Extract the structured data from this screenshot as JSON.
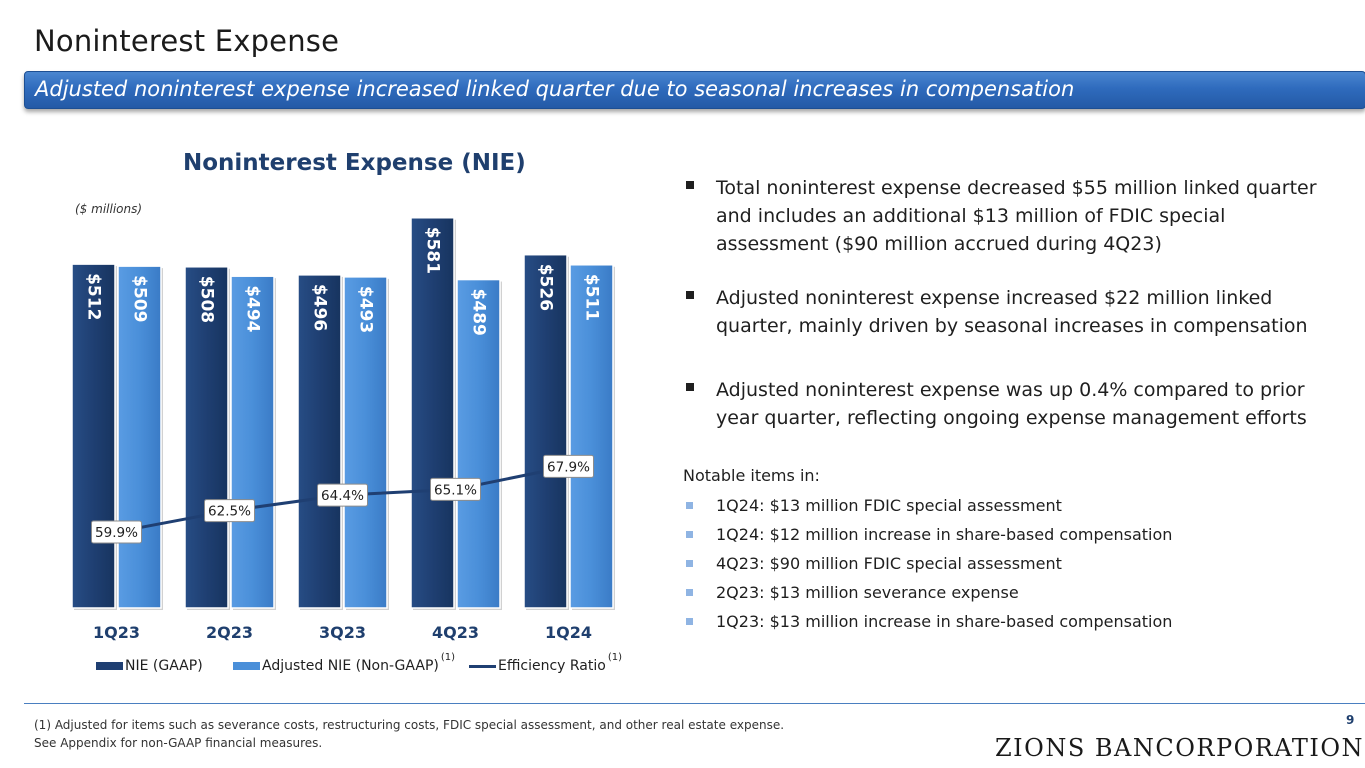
{
  "header": {
    "title": "Noninterest Expense",
    "banner": "Adjusted noninterest expense increased linked quarter due to seasonal increases in compensation"
  },
  "chart_data": {
    "type": "bar",
    "title": "Noninterest Expense (NIE)",
    "units_note": "($ millions)",
    "categories": [
      "1Q23",
      "2Q23",
      "3Q23",
      "4Q23",
      "1Q24"
    ],
    "series": [
      {
        "name": "NIE (GAAP)",
        "values": [
          512,
          508,
          496,
          581,
          526
        ],
        "labels": [
          "$512",
          "$508",
          "$496",
          "$581",
          "$526"
        ],
        "color": "#1f3f72"
      },
      {
        "name": "Adjusted NIE (Non-GAAP)",
        "values": [
          509,
          494,
          493,
          489,
          511
        ],
        "labels": [
          "$509",
          "$494",
          "$493",
          "$489",
          "$511"
        ],
        "color": "#4a8fd9"
      },
      {
        "name": "Efficiency Ratio",
        "type": "line",
        "values": [
          59.9,
          62.5,
          64.4,
          65.1,
          67.9
        ],
        "labels": [
          "59.9%",
          "62.5%",
          "64.4%",
          "65.1%",
          "67.9%"
        ],
        "color": "#1f3f72"
      }
    ],
    "ylim": [
      0,
      600
    ],
    "ratio_ylim": [
      0,
      100
    ],
    "legend": {
      "gaap": "NIE (GAAP)",
      "adjusted": "Adjusted NIE (Non-GAAP)",
      "adjusted_sup": "(1)",
      "ratio": "Efficiency Ratio",
      "ratio_sup": "(1)"
    }
  },
  "bullets": [
    "Total noninterest expense decreased $55 million linked quarter and includes an additional $13 million of FDIC special assessment ($90 million accrued during 4Q23)",
    "Adjusted noninterest expense increased $22 million linked quarter, mainly driven by seasonal increases in compensation",
    "Adjusted noninterest expense was up 0.4% compared to prior year quarter, reflecting ongoing expense management efforts"
  ],
  "notable": {
    "heading": "Notable items in:",
    "items": [
      "1Q24: $13 million FDIC special assessment",
      "1Q24: $12 million increase in share-based compensation",
      "4Q23: $90 million FDIC special assessment",
      "2Q23: $13 million severance expense",
      "1Q23: $13 million increase in share-based compensation"
    ]
  },
  "footer": {
    "note1": "(1) Adjusted for items such as severance costs, restructuring costs, FDIC special assessment, and other real estate expense.",
    "note2": "See Appendix for non-GAAP financial measures.",
    "page": "9",
    "logo": "ZIONS BANCORPORATION"
  },
  "colors": {
    "accent": "#2f6bbd",
    "gaap": "#1f3f72",
    "adjusted": "#4a8fd9",
    "notable_bullet": "#8fb4e3"
  }
}
